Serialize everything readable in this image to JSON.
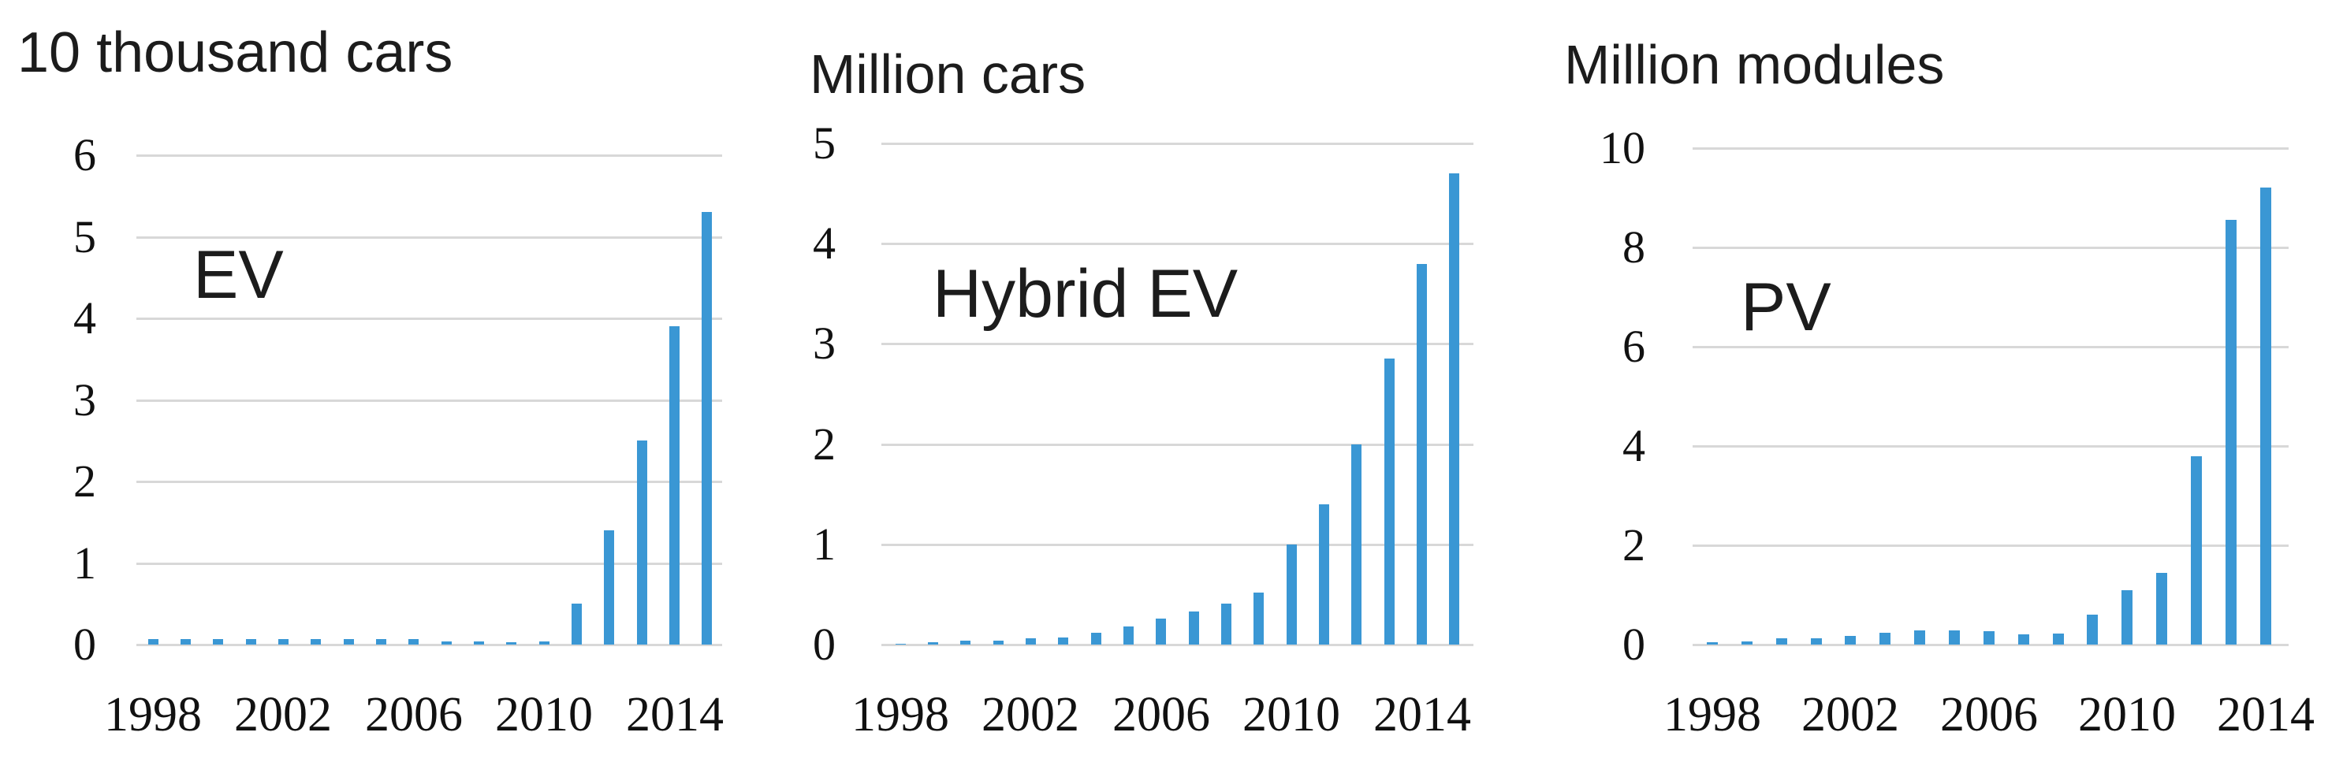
{
  "figure": {
    "bar_color": "#3a97d4",
    "gridline_color": "#d8d8d8",
    "text_color": "#1c1c1c",
    "background_color": "#ffffff"
  },
  "chart_data": [
    {
      "type": "bar",
      "series_label": "EV",
      "title": "10 thousand cars",
      "ylabel": "10 thousand cars",
      "xlabel": "",
      "x": [
        1998,
        1999,
        2000,
        2001,
        2002,
        2003,
        2004,
        2005,
        2006,
        2007,
        2008,
        2009,
        2010,
        2011,
        2012,
        2013,
        2014,
        2015
      ],
      "values": [
        0.07,
        0.07,
        0.07,
        0.07,
        0.07,
        0.07,
        0.07,
        0.07,
        0.07,
        0.04,
        0.035,
        0.025,
        0.035,
        0.5,
        1.4,
        2.5,
        3.9,
        5.3
      ],
      "y_ticks": [
        0,
        1,
        2,
        3,
        4,
        5,
        6
      ],
      "x_tick_labels": [
        "1998",
        "2002",
        "2006",
        "2010",
        "2014"
      ],
      "ylim": [
        0,
        6
      ],
      "grid": true,
      "legend": false
    },
    {
      "type": "bar",
      "series_label": "Hybrid EV",
      "title": "Million cars",
      "ylabel": "Million cars",
      "xlabel": "",
      "x": [
        1998,
        1999,
        2000,
        2001,
        2002,
        2003,
        2004,
        2005,
        2006,
        2007,
        2008,
        2009,
        2010,
        2011,
        2012,
        2013,
        2014,
        2015
      ],
      "values": [
        0.01,
        0.02,
        0.04,
        0.04,
        0.06,
        0.07,
        0.12,
        0.18,
        0.26,
        0.33,
        0.41,
        0.52,
        1.0,
        1.4,
        2.0,
        2.85,
        3.8,
        4.7
      ],
      "y_ticks": [
        0,
        1,
        2,
        3,
        4,
        5
      ],
      "x_tick_labels": [
        "1998",
        "2002",
        "2006",
        "2010",
        "2014"
      ],
      "ylim": [
        0,
        5
      ],
      "grid": true,
      "legend": false
    },
    {
      "type": "bar",
      "series_label": "PV",
      "title": "Million modules",
      "ylabel": "Million modules",
      "xlabel": "",
      "x": [
        1998,
        1999,
        2000,
        2001,
        2002,
        2003,
        2004,
        2005,
        2006,
        2007,
        2008,
        2009,
        2010,
        2011,
        2012,
        2013,
        2014
      ],
      "values": [
        0.05,
        0.06,
        0.12,
        0.13,
        0.18,
        0.24,
        0.28,
        0.29,
        0.27,
        0.21,
        0.22,
        0.6,
        1.1,
        1.45,
        3.8,
        8.55,
        9.2
      ],
      "y_ticks": [
        0,
        2,
        4,
        6,
        8,
        10
      ],
      "x_tick_labels": [
        "1998",
        "2002",
        "2006",
        "2010",
        "2014"
      ],
      "ylim": [
        0,
        10
      ],
      "grid": true,
      "legend": false
    }
  ]
}
